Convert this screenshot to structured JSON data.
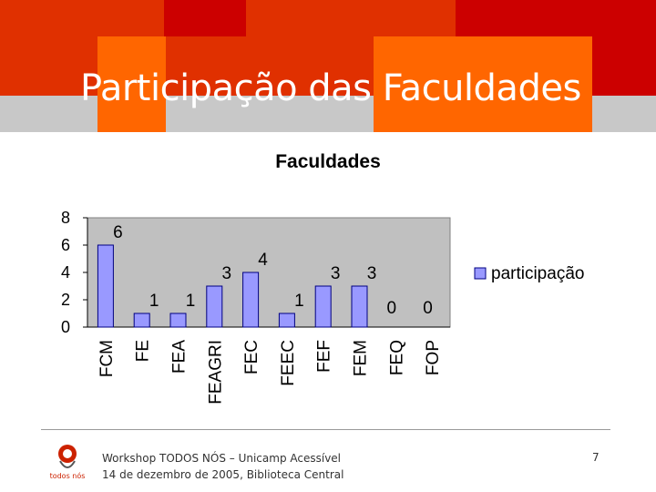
{
  "slide": {
    "title": "Participação das Faculdades",
    "footer_line1": "Workshop TODOS NÓS – Unicamp Acessível",
    "footer_line2": "14 de dezembro de 2005, Biblioteca Central",
    "page_number": "7",
    "logo_text": "todos nós"
  },
  "colors": {
    "header_red": "#e03000",
    "header_dark_red": "#cc0000",
    "header_orange": "#ff6600",
    "header_gray": "#c8c8c8",
    "plot_bg": "#c0c0c0",
    "bar_fill": "#9999ff",
    "bar_stroke": "#000080"
  },
  "chart_data": {
    "type": "bar",
    "title": "Faculdades",
    "categories": [
      "FCM",
      "FE",
      "FEA",
      "FEAGRI",
      "FEC",
      "FEEC",
      "FEF",
      "FEM",
      "FEQ",
      "FOP"
    ],
    "series": [
      {
        "name": "participação",
        "values": [
          6,
          1,
          1,
          3,
          4,
          1,
          3,
          3,
          0,
          0
        ]
      }
    ],
    "data_labels": [
      "6",
      "1",
      "1",
      "3",
      "4",
      "1",
      "3",
      "3",
      "0",
      "0"
    ],
    "ylim": [
      0,
      8
    ],
    "yticks": [
      "0",
      "2",
      "4",
      "6",
      "8"
    ],
    "grid": false,
    "legend": "right"
  }
}
